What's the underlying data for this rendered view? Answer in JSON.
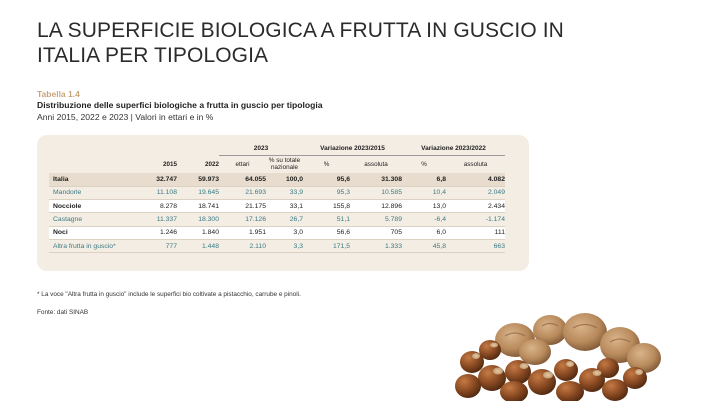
{
  "page": {
    "title": "LA SUPERFICIE BIOLOGICA A FRUTTA IN GUSCIO IN ITALIA PER TIPOLOGIA"
  },
  "table_info": {
    "tag": "Tabella 1.4",
    "heading": "Distribuzione delle superfici biologiche a frutta in guscio per tipologia",
    "subheading": "Anni 2015, 2022 e 2023   |   Valori in ettari e in %"
  },
  "table": {
    "group_headers": {
      "y2023": "2023",
      "var_2015": "Variazione 2023/2015",
      "var_2022": "Variazione 2023/2022"
    },
    "columns": {
      "y2015": "2015",
      "y2022": "2022",
      "ettari": "ettari",
      "pct_total": "% su totale nazionale",
      "pct_a": "%",
      "abs_a": "assoluta",
      "pct_b": "%",
      "abs_b": "assoluta"
    },
    "rows": [
      {
        "name": "Italia",
        "y2015": "32.747",
        "y2022": "59.973",
        "ettari": "64.055",
        "pct_total": "100,0",
        "pct_a": "95,6",
        "abs_a": "31.308",
        "pct_b": "6,8",
        "abs_b": "4.082"
      },
      {
        "name": "Mandorle",
        "y2015": "11.108",
        "y2022": "19.645",
        "ettari": "21.693",
        "pct_total": "33,9",
        "pct_a": "95,3",
        "abs_a": "10.585",
        "pct_b": "10,4",
        "abs_b": "2.049"
      },
      {
        "name": "Nocciole",
        "y2015": "8.278",
        "y2022": "18.741",
        "ettari": "21.175",
        "pct_total": "33,1",
        "pct_a": "155,8",
        "abs_a": "12.896",
        "pct_b": "13,0",
        "abs_b": "2.434"
      },
      {
        "name": "Castagne",
        "y2015": "11.337",
        "y2022": "18.300",
        "ettari": "17.126",
        "pct_total": "26,7",
        "pct_a": "51,1",
        "abs_a": "5.789",
        "pct_b": "-6,4",
        "abs_b": "-1.174"
      },
      {
        "name": "Noci",
        "y2015": "1.246",
        "y2022": "1.840",
        "ettari": "1.951",
        "pct_total": "3,0",
        "pct_a": "56,6",
        "abs_a": "705",
        "pct_b": "6,0",
        "abs_b": "111"
      },
      {
        "name": "Altra frutta in guscio*",
        "y2015": "777",
        "y2022": "1.448",
        "ettari": "2.110",
        "pct_total": "3,3",
        "pct_a": "171,5",
        "abs_a": "1.333",
        "pct_b": "45,8",
        "abs_b": "663"
      }
    ]
  },
  "notes": {
    "footnote": "* La  voce \"Altra frutta in guscio\" include le superfici bio coltivate a pistacchio, carrube e pinoli.",
    "source": "Fonte: dati SINAB"
  },
  "image": {
    "icon": "nuts-illustration-icon"
  },
  "colors": {
    "accent": "#c8a57c",
    "panel": "#f4ede3",
    "highlight_row": "#e7dccd",
    "teal_text": "#3a7b86"
  }
}
